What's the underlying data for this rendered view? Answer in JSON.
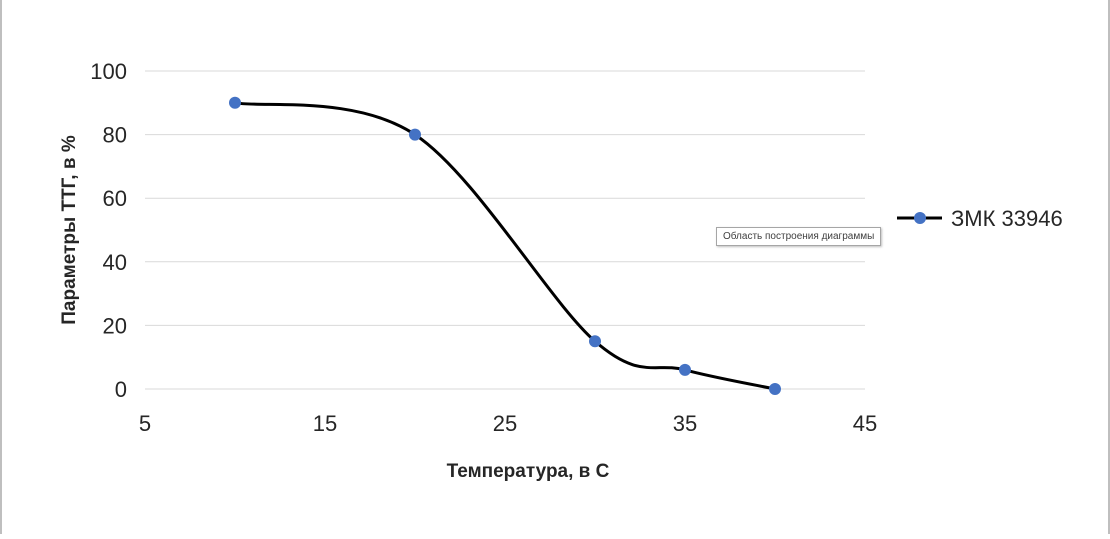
{
  "chart_data": {
    "type": "scatter",
    "smooth": true,
    "xlabel": "Температура, в С",
    "ylabel": "Параметры ТТГ, в %",
    "xlim": [
      5,
      45
    ],
    "ylim": [
      0,
      100
    ],
    "xticks": [
      5,
      15,
      25,
      35,
      45
    ],
    "yticks": [
      0,
      20,
      40,
      60,
      80,
      100
    ],
    "grid": "horizontal",
    "legend_position": "right",
    "series": [
      {
        "name": "ЗМК 33946",
        "line_color": "#000000",
        "marker_color": "#4472c4",
        "x": [
          10,
          20,
          30,
          35,
          40
        ],
        "y": [
          90,
          80,
          15,
          6,
          0
        ]
      }
    ]
  },
  "tooltip": {
    "text": "Область построения диаграммы"
  },
  "colors": {
    "grid": "#d9d9d9",
    "frame_border": "#bfbfbf",
    "text": "#262626"
  }
}
